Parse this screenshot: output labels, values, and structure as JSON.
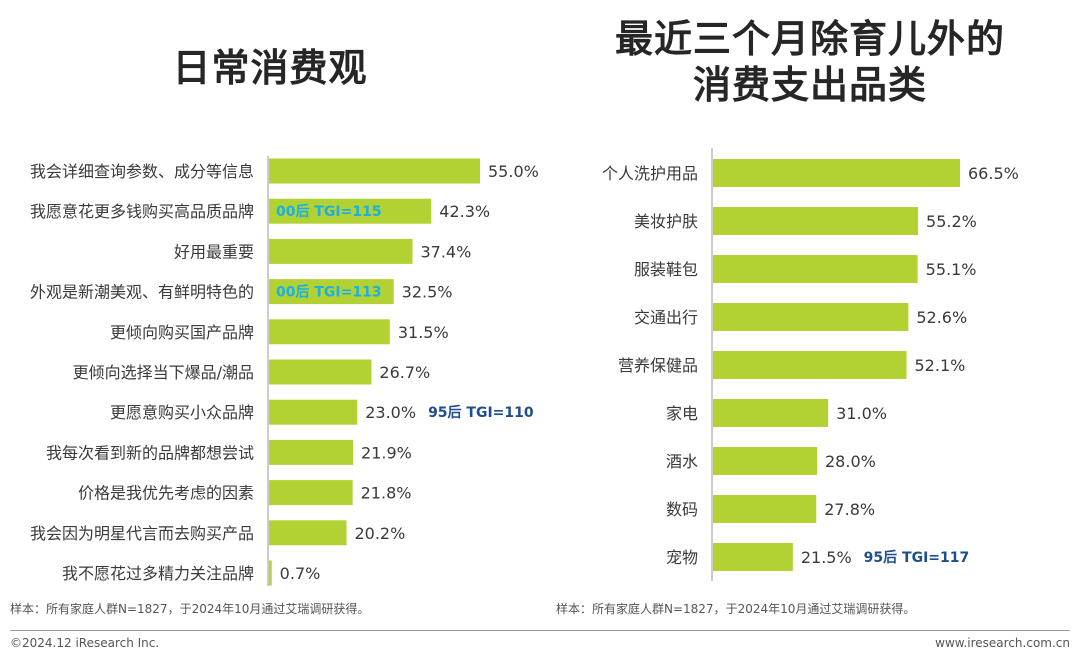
{
  "chart_data": [
    {
      "type": "bar",
      "orientation": "horizontal",
      "title": "日常消费观",
      "categories": [
        "我会详细查询参数、成分等信息",
        "我愿意花更多钱购买高品质品牌",
        "好用最重要",
        "外观是新潮美观、有鲜明特色的",
        "更倾向购买国产品牌",
        "更倾向选择当下爆品/潮品",
        "更愿意购买小众品牌",
        "我每次看到新的品牌都想尝试",
        "价格是我优先考虑的因素",
        "我会因为明星代言而去购买产品",
        "我不愿花过多精力关注品牌"
      ],
      "values": [
        55.0,
        42.3,
        37.4,
        32.5,
        31.5,
        26.7,
        23.0,
        21.9,
        21.8,
        20.2,
        0.7
      ],
      "value_labels": [
        "55.0%",
        "42.3%",
        "37.4%",
        "32.5%",
        "31.5%",
        "26.7%",
        "23.0%",
        "21.9%",
        "21.8%",
        "20.2%",
        "0.7%"
      ],
      "annotations": [
        {
          "category_index": 1,
          "text": "00后 TGI=115",
          "position": "inside"
        },
        {
          "category_index": 3,
          "text": "00后 TGI=113",
          "position": "inside"
        },
        {
          "category_index": 6,
          "text": "95后 TGI=110",
          "position": "after"
        }
      ],
      "bar_color": "#b2d234",
      "max_value": 55.0
    },
    {
      "type": "bar",
      "orientation": "horizontal",
      "title": "最近三个月除育儿外的消费支出品类",
      "categories": [
        "个人洗护用品",
        "美妆护肤",
        "服装鞋包",
        "交通出行",
        "营养保健品",
        "家电",
        "酒水",
        "数码",
        "宠物"
      ],
      "values": [
        66.5,
        55.2,
        55.1,
        52.6,
        52.1,
        31.0,
        28.0,
        27.8,
        21.5
      ],
      "value_labels": [
        "66.5%",
        "55.2%",
        "55.1%",
        "52.6%",
        "52.1%",
        "31.0%",
        "28.0%",
        "27.8%",
        "21.5%"
      ],
      "annotations": [
        {
          "category_index": 8,
          "text": "95后 TGI=117",
          "position": "after"
        }
      ],
      "bar_color": "#b2d234",
      "max_value": 66.5
    }
  ],
  "titles": {
    "left": "日常消费观",
    "right_line1": "最近三个月除育儿外的",
    "right_line2": "消费支出品类"
  },
  "notes": {
    "left": "样本：所有家庭人群N=1827，于2024年10月通过艾瑞调研获得。",
    "right": "样本：所有家庭人群N=1827，于2024年10月通过艾瑞调研获得。"
  },
  "footer": {
    "copyright": "©2024.12 iResearch Inc.",
    "website": "www.iresearch.com.cn"
  },
  "colors": {
    "bar": "#b2d234",
    "annotation_00": "#1ab0e0",
    "annotation_95": "#1f4e8c",
    "axis": "#9a9a9a"
  }
}
